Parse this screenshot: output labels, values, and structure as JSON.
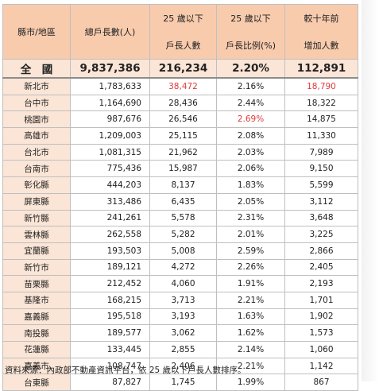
{
  "headers": {
    "col1": "縣市/地區",
    "col2": "總戶長數(人)",
    "col3_top": "25 歲以下",
    "col3_bottom": "戶長人數",
    "col4_top": "25 歲以下",
    "col4_bottom": "戶長比例(%)",
    "col5_top": "較十年前",
    "col5_bottom": "增加人數"
  },
  "total": {
    "name": "全　國",
    "households": "9,837,386",
    "under25": "216,234",
    "ratio": "2.20%",
    "increase": "112,891"
  },
  "rows": [
    {
      "name": "新北市",
      "households": "1,783,633",
      "under25": "38,472",
      "ratio": "2.16%",
      "increase": "18,790"
    },
    {
      "name": "台中市",
      "households": "1,164,690",
      "under25": "28,436",
      "ratio": "2.44%",
      "increase": "18,322"
    },
    {
      "name": "桃園市",
      "households": "987,676",
      "under25": "26,546",
      "ratio": "2.69%",
      "increase": "14,875"
    },
    {
      "name": "高雄市",
      "households": "1,209,003",
      "under25": "25,115",
      "ratio": "2.08%",
      "increase": "11,330"
    },
    {
      "name": "台北市",
      "households": "1,081,315",
      "under25": "21,962",
      "ratio": "2.03%",
      "increase": "7,989"
    },
    {
      "name": "台南市",
      "households": "775,436",
      "under25": "15,987",
      "ratio": "2.06%",
      "increase": "9,150"
    },
    {
      "name": "彰化縣",
      "households": "444,203",
      "under25": "8,137",
      "ratio": "1.83%",
      "increase": "5,599"
    },
    {
      "name": "屏東縣",
      "households": "313,486",
      "under25": "6,435",
      "ratio": "2.05%",
      "increase": "3,112"
    },
    {
      "name": "新竹縣",
      "households": "241,261",
      "under25": "5,578",
      "ratio": "2.31%",
      "increase": "3,648"
    },
    {
      "name": "雲林縣",
      "households": "262,558",
      "under25": "5,282",
      "ratio": "2.01%",
      "increase": "3,225"
    },
    {
      "name": "宜蘭縣",
      "households": "193,503",
      "under25": "5,008",
      "ratio": "2.59%",
      "increase": "2,866"
    },
    {
      "name": "新竹市",
      "households": "189,121",
      "under25": "4,272",
      "ratio": "2.26%",
      "increase": "2,405"
    },
    {
      "name": "苗栗縣",
      "households": "212,452",
      "under25": "4,060",
      "ratio": "1.91%",
      "increase": "2,193"
    },
    {
      "name": "基隆市",
      "households": "168,215",
      "under25": "3,713",
      "ratio": "2.21%",
      "increase": "1,701"
    },
    {
      "name": "嘉義縣",
      "households": "195,518",
      "under25": "3,193",
      "ratio": "1.63%",
      "increase": "1,902"
    },
    {
      "name": "南投縣",
      "households": "189,577",
      "under25": "3,062",
      "ratio": "1.62%",
      "increase": "1,573"
    },
    {
      "name": "花蓮縣",
      "households": "133,445",
      "under25": "2,855",
      "ratio": "2.14%",
      "increase": "1,060"
    },
    {
      "name": "嘉義市",
      "households": "108,747",
      "under25": "2,406",
      "ratio": "2.21%",
      "increase": "1,142"
    },
    {
      "name": "台東縣",
      "households": "87,827",
      "under25": "1,745",
      "ratio": "1.99%",
      "increase": "867"
    }
  ],
  "highlights": {
    "新北市_under25": true,
    "新北市_increase": true,
    "桃園市_ratio": true
  },
  "colors": {
    "header_bg": "#f8cbad",
    "name_bg": "#fbe5d6",
    "highlight": "#e03a3a",
    "border": "#bfbfbf"
  },
  "footnote": "資料來源：內政部不動產資訊平台，依 25 歲以下戶長人數排序。"
}
